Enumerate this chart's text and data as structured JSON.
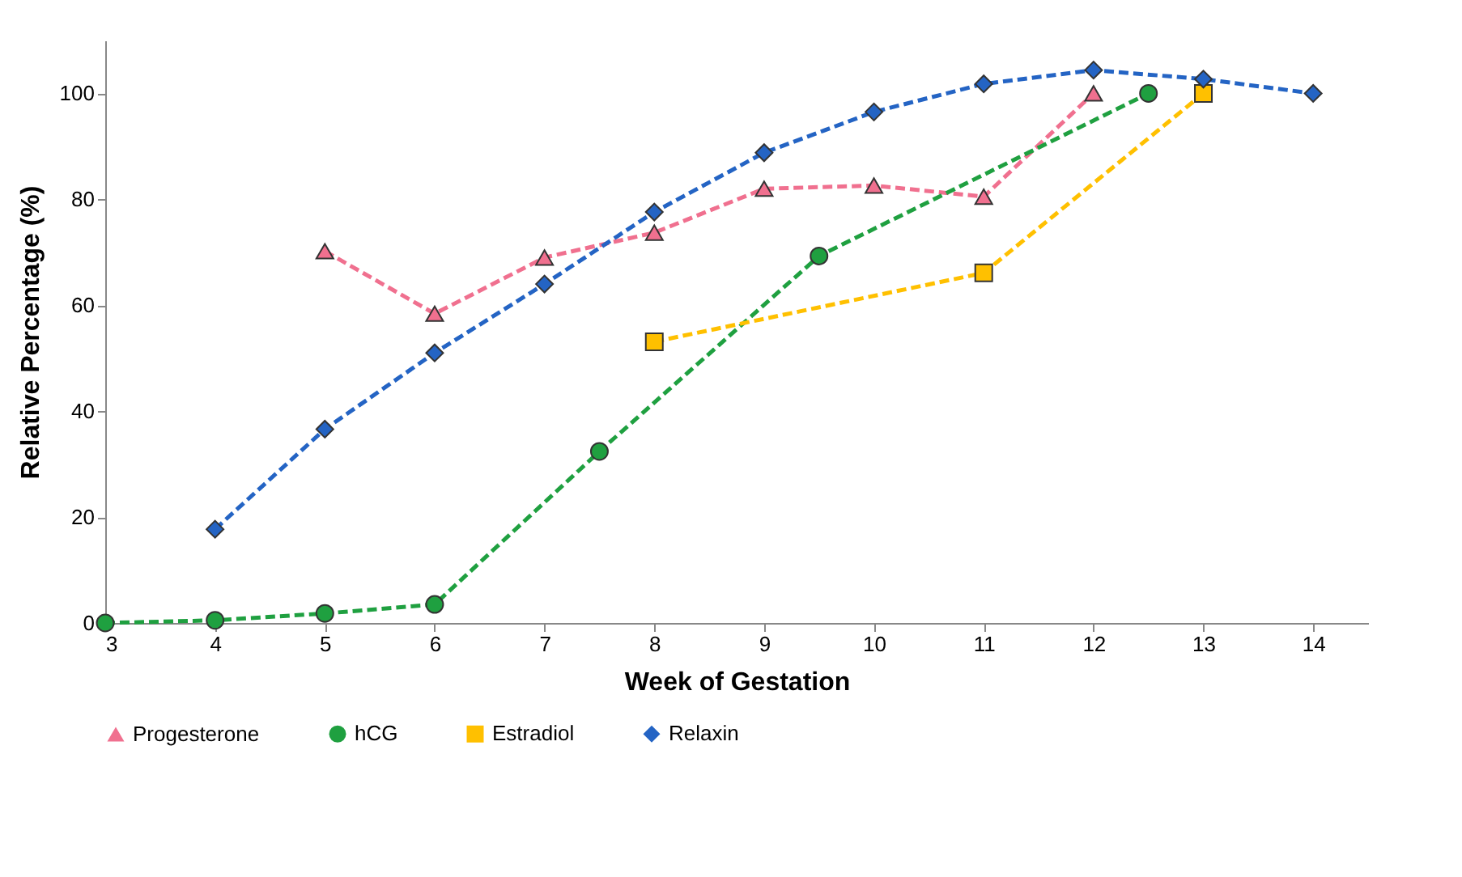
{
  "chart_data": {
    "type": "line",
    "xlabel": "Week of Gestation",
    "ylabel": "Relative Percentage (%)",
    "xlim": [
      3,
      14.5
    ],
    "xticks": [
      3,
      4,
      5,
      6,
      7,
      8,
      9,
      10,
      11,
      12,
      13,
      14
    ],
    "ylim": [
      0,
      110
    ],
    "yticks": [
      0,
      20,
      40,
      60,
      80,
      100
    ],
    "grid": false,
    "legend": "bottom",
    "line_style": "dashed",
    "series": [
      {
        "name": "Progesterone",
        "color": "#f0708f",
        "marker": "triangle",
        "x": [
          5,
          6,
          7,
          8,
          9,
          10,
          11,
          12
        ],
        "values": [
          70.2,
          58.4,
          69,
          73.7,
          82,
          82.6,
          80.5,
          100
        ]
      },
      {
        "name": "hCG",
        "color": "#1fa040",
        "marker": "circle",
        "x": [
          3,
          4,
          5,
          6,
          7.5,
          9.5,
          12.5
        ],
        "values": [
          0,
          0.5,
          1.8,
          3.5,
          32.4,
          69.3,
          100
        ]
      },
      {
        "name": "Estradiol",
        "color": "#ffc000",
        "marker": "square",
        "x": [
          8,
          11,
          13
        ],
        "values": [
          53.1,
          66.1,
          100
        ]
      },
      {
        "name": "Relaxin",
        "color": "#2464c4",
        "marker": "diamond",
        "x": [
          4,
          5,
          6,
          7,
          8,
          9,
          10,
          11,
          12,
          13,
          14
        ],
        "values": [
          17.7,
          36.6,
          51,
          64,
          77.6,
          88.8,
          96.5,
          101.8,
          104.4,
          102.7,
          100
        ]
      }
    ]
  }
}
